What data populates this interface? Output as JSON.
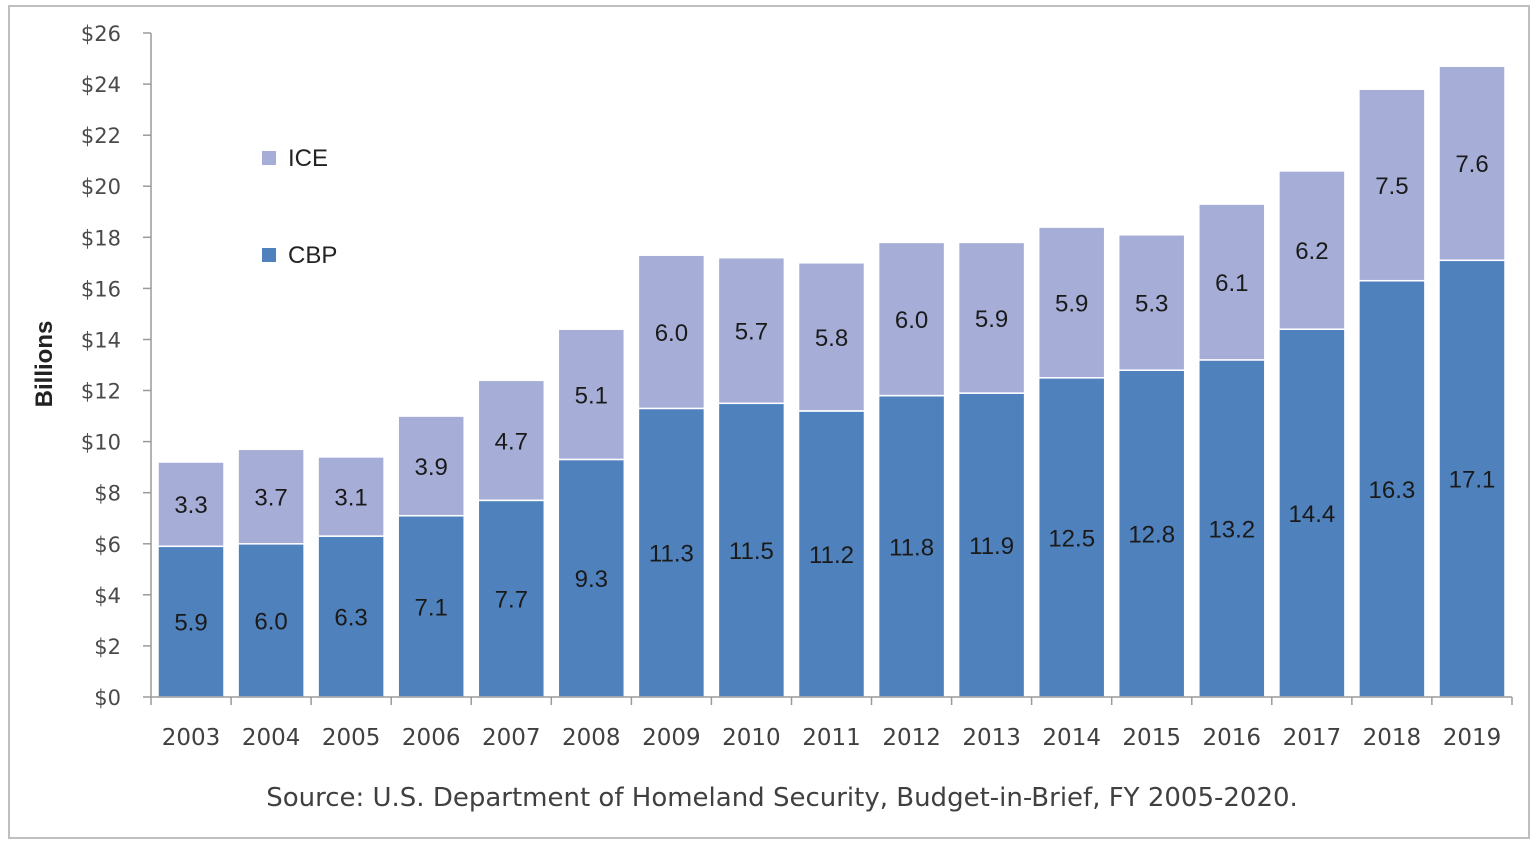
{
  "chart_data": {
    "type": "bar",
    "stacked": true,
    "categories": [
      "2003",
      "2004",
      "2005",
      "2006",
      "2007",
      "2008",
      "2009",
      "2010",
      "2011",
      "2012",
      "2013",
      "2014",
      "2015",
      "2016",
      "2017",
      "2018",
      "2019"
    ],
    "series": [
      {
        "name": "CBP",
        "color": "#4f81bd",
        "values": [
          5.9,
          6.0,
          6.3,
          7.1,
          7.7,
          9.3,
          11.3,
          11.5,
          11.2,
          11.8,
          11.9,
          12.5,
          12.8,
          13.2,
          14.4,
          16.3,
          17.1
        ]
      },
      {
        "name": "ICE",
        "color": "#a6aed8",
        "values": [
          3.3,
          3.7,
          3.1,
          3.9,
          4.7,
          5.1,
          6.0,
          5.7,
          5.8,
          6.0,
          5.9,
          5.9,
          5.3,
          6.1,
          6.2,
          7.5,
          7.6
        ]
      }
    ],
    "ylabel": "Billions",
    "ylim": [
      0,
      26
    ],
    "yticks": [
      "$0",
      "$2",
      "$4",
      "$6",
      "$8",
      "$10",
      "$12",
      "$14",
      "$16",
      "$18",
      "$20",
      "$22",
      "$24",
      "$26"
    ],
    "grid": false,
    "legend_position": "upper-left",
    "source": "Source: U.S. Department of Homeland Security, Budget-in-Brief, FY 2005-2020."
  }
}
